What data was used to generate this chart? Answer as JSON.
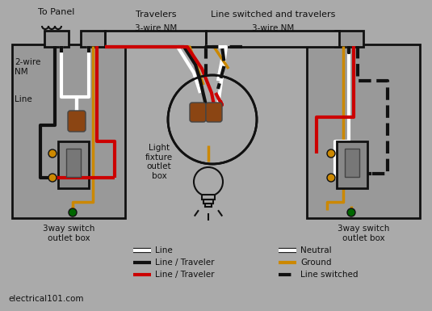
{
  "bg_color": "#aaaaaa",
  "colors": {
    "black": "#111111",
    "white": "#ffffff",
    "red": "#cc0000",
    "gold": "#cc8800",
    "green": "#006600",
    "bg": "#aaaaaa",
    "box_fill": "#999999",
    "brown": "#8B4513",
    "dark_gray": "#444444",
    "medium_gray": "#888888"
  },
  "labels": {
    "to_panel": "To Panel",
    "travelers": "Travelers",
    "line_switched_travelers": "Line switched and travelers",
    "wire_nm_left": "3-wire NM",
    "wire_nm_right": "3-wire NM",
    "wire_2nm": "2-wire\nNM",
    "line_label": "Line",
    "box_left": "3way switch\noutlet box",
    "box_right": "3way switch\noutlet box",
    "light_box": "Light\nfixture\noutlet\nbox",
    "website": "electrical101.com"
  },
  "legend": [
    {
      "label": "Line",
      "color": "#ffffff",
      "style": "solid",
      "has_outline": true
    },
    {
      "label": "Line / Traveler",
      "color": "#111111",
      "style": "solid",
      "has_outline": false
    },
    {
      "label": "Line / Traveler",
      "color": "#cc0000",
      "style": "solid",
      "has_outline": false
    },
    {
      "label": "Neutral",
      "color": "#ffffff",
      "style": "solid",
      "has_outline": true
    },
    {
      "label": "Ground",
      "color": "#cc8800",
      "style": "solid",
      "has_outline": false
    },
    {
      "label": "Line switched",
      "color": "#111111",
      "style": "dashed",
      "has_outline": false
    }
  ]
}
